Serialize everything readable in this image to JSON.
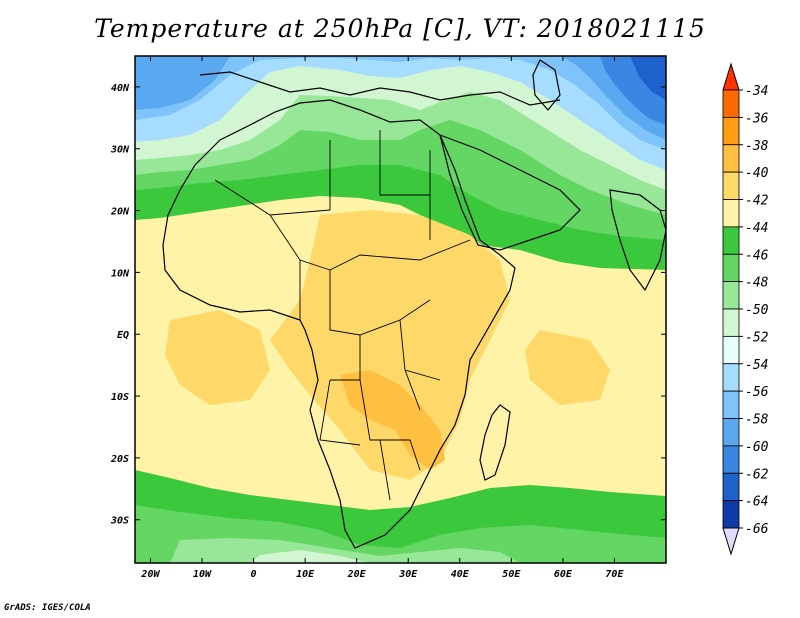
{
  "title": "Temperature at 250hPa [C], VT: 2018021115",
  "credit": "GrADS: IGES/COLA",
  "map": {
    "projection": "latlon",
    "lon_range": [
      -23,
      80
    ],
    "lat_range": [
      -37,
      45
    ],
    "lon_ticks": [
      "20W",
      "10W",
      "0",
      "10E",
      "20E",
      "30E",
      "40E",
      "50E",
      "60E",
      "70E"
    ],
    "lat_ticks": [
      "40N",
      "30N",
      "20N",
      "10N",
      "EQ",
      "10S",
      "20S",
      "30S"
    ]
  },
  "colorbar": {
    "levels": [
      "-34",
      "-36",
      "-38",
      "-40",
      "-42",
      "-44",
      "-46",
      "-48",
      "-50",
      "-52",
      "-54",
      "-56",
      "-58",
      "-60",
      "-62",
      "-64",
      "-66"
    ],
    "colors": [
      "#ff3300",
      "#ff6a00",
      "#ff9d12",
      "#ffbf40",
      "#ffd86a",
      "#fff3a8",
      "#3cc83c",
      "#64d664",
      "#98e698",
      "#d2f6d2",
      "#e8ffff",
      "#a6dcff",
      "#7ec4fa",
      "#5aa8f0",
      "#3a86e2",
      "#1e60cc",
      "#0f3aa8",
      "#0a1e78",
      "#e0dcff"
    ],
    "top_color": "#ff3300",
    "bottom_color": "#e0dcff"
  }
}
